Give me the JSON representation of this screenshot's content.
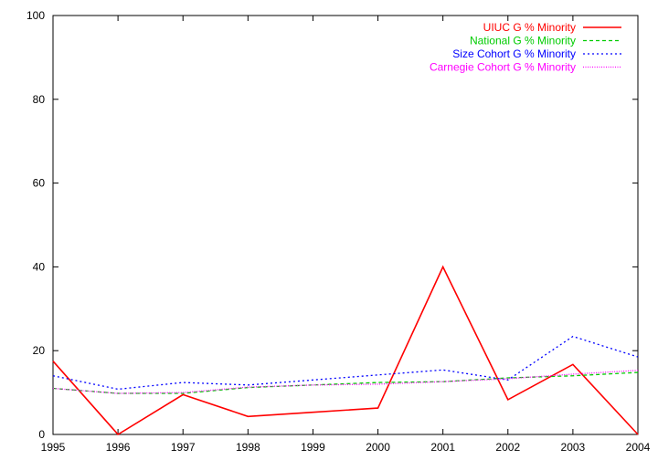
{
  "chart_data": {
    "type": "line",
    "title": "",
    "xlabel": "",
    "ylabel": "",
    "x": [
      1995,
      1996,
      1997,
      1998,
      1999,
      2000,
      2001,
      2002,
      2003,
      2004
    ],
    "xlim": [
      1995,
      2004
    ],
    "ylim": [
      0,
      100
    ],
    "xticks": [
      "1995",
      "1996",
      "1997",
      "1998",
      "1999",
      "2000",
      "2001",
      "2002",
      "2003",
      "2004"
    ],
    "yticks": [
      "0",
      "20",
      "40",
      "60",
      "80",
      "100"
    ],
    "grid": false,
    "legend_position": "top-right",
    "series": [
      {
        "name": "UIUC G % Minority",
        "color": "#ff0000",
        "dash": "solid",
        "values": [
          17.5,
          0,
          9.5,
          4.3,
          5.3,
          6.3,
          40,
          8.3,
          16.7,
          0
        ]
      },
      {
        "name": "National G % Minority",
        "color": "#00cc00",
        "dash": "dashed",
        "values": [
          11,
          9.8,
          9.8,
          11.2,
          11.8,
          12.4,
          12.6,
          13.5,
          14,
          14.8
        ]
      },
      {
        "name": "Size Cohort G % Minority",
        "color": "#0000ff",
        "dash": "dotted",
        "values": [
          14,
          10.8,
          12.4,
          11.8,
          13,
          14.2,
          15.4,
          13,
          23.4,
          18.5
        ]
      },
      {
        "name": "Carnegie Cohort G % Minority",
        "color": "#ff00ff",
        "dash": "fine-dotted",
        "values": [
          11,
          9.8,
          10,
          11.3,
          11.8,
          12,
          12.6,
          13.3,
          14.4,
          15.3
        ]
      }
    ]
  }
}
